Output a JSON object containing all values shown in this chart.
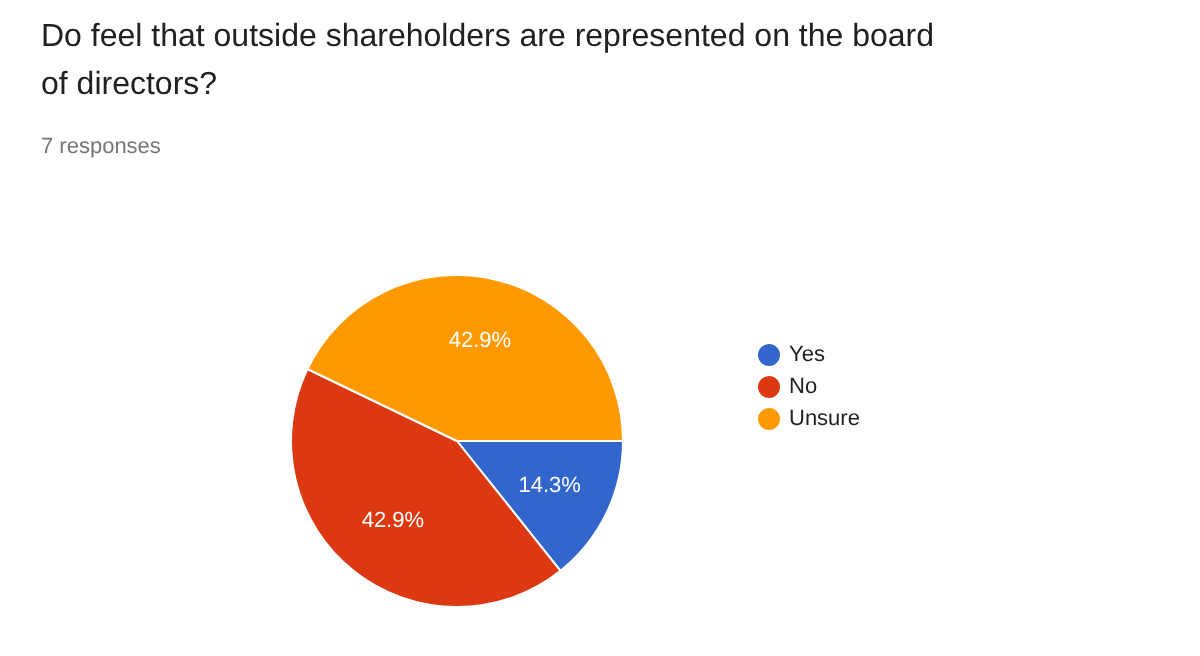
{
  "chart_data": {
    "type": "pie",
    "title": "Do feel that outside shareholders are represented on the board of directors?",
    "subtitle": "7 responses",
    "categories": [
      "Yes",
      "No",
      "Unsure"
    ],
    "values": [
      14.3,
      42.9,
      42.9
    ],
    "value_labels": [
      "14.3%",
      "42.9%",
      "42.9%"
    ],
    "colors": [
      "#3366cc",
      "#dc3912",
      "#ff9900"
    ],
    "legend": "right"
  }
}
